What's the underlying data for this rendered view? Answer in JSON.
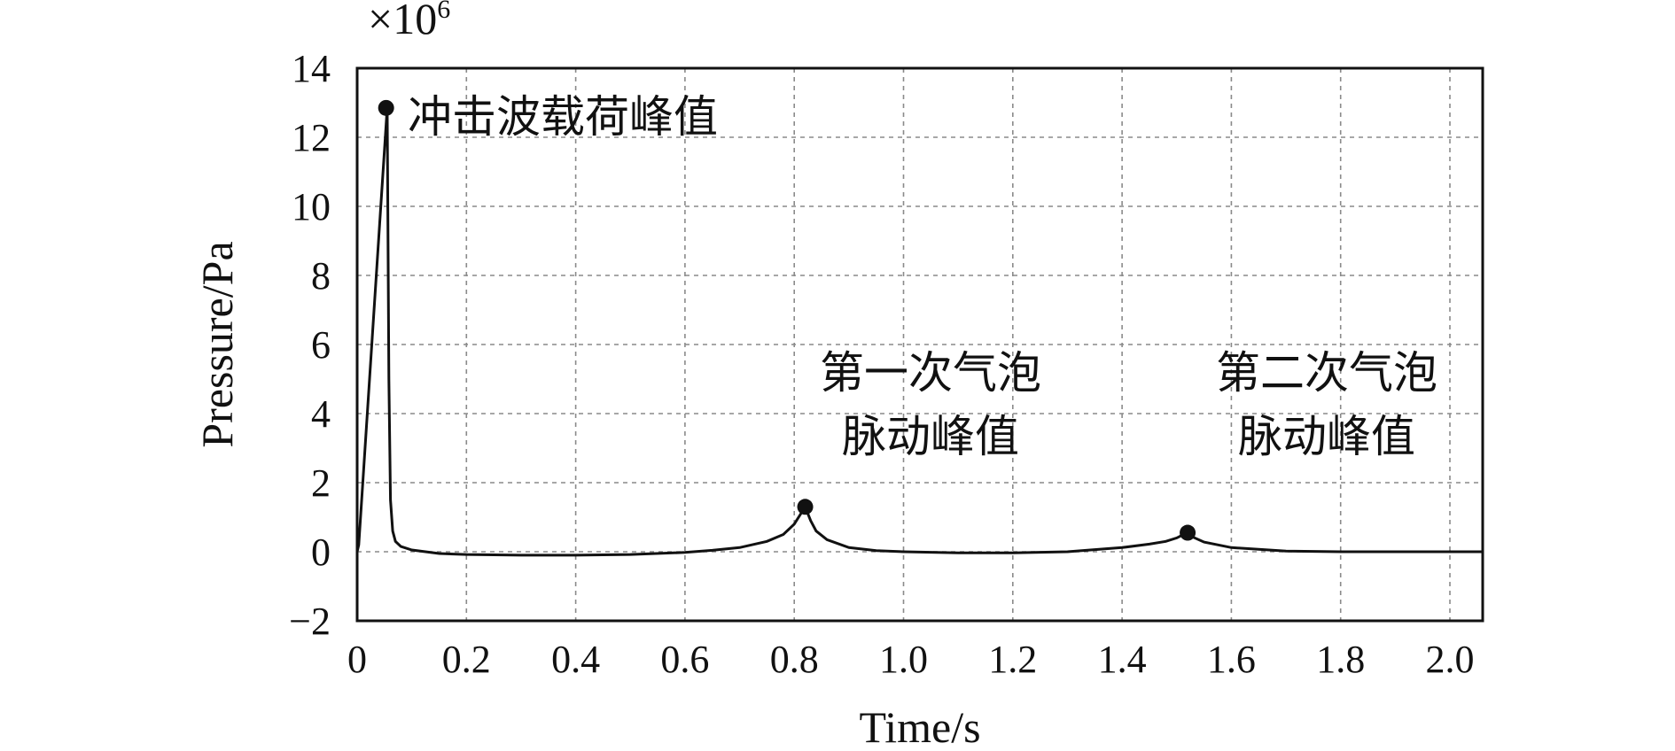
{
  "chart_data": {
    "type": "line",
    "title": "",
    "xlabel": "Time/s",
    "ylabel": "Pressure/Pa",
    "y_multiplier_label": "×10",
    "y_multiplier_exponent": "6",
    "xlim": [
      0,
      2.06
    ],
    "ylim": [
      -2,
      14
    ],
    "x_ticks": [
      0,
      0.2,
      0.4,
      0.6,
      0.8,
      1.0,
      1.2,
      1.4,
      1.6,
      1.8,
      2.0
    ],
    "x_tick_labels": [
      "0",
      "0.2",
      "0.4",
      "0.6",
      "0.8",
      "1.0",
      "1.2",
      "1.4",
      "1.6",
      "1.8",
      "2.0"
    ],
    "y_ticks": [
      -2,
      0,
      2,
      4,
      6,
      8,
      10,
      12,
      14
    ],
    "y_tick_labels": [
      "−2",
      "0",
      "2",
      "4",
      "6",
      "8",
      "10",
      "12",
      "14"
    ],
    "grid": true,
    "series": [
      {
        "x": [
          0,
          0.003,
          0.055,
          0.058,
          0.061,
          0.065,
          0.07,
          0.08,
          0.1,
          0.15,
          0.2,
          0.3,
          0.4,
          0.5,
          0.6,
          0.65,
          0.7,
          0.75,
          0.78,
          0.8,
          0.81,
          0.82,
          0.83,
          0.84,
          0.86,
          0.9,
          0.95,
          1.0,
          1.1,
          1.2,
          1.3,
          1.4,
          1.45,
          1.48,
          1.5,
          1.51,
          1.52,
          1.53,
          1.55,
          1.6,
          1.7,
          1.8,
          1.9,
          2.06
        ],
        "y": [
          0,
          0.2,
          12.85,
          5,
          1.5,
          0.6,
          0.3,
          0.15,
          0.05,
          -0.05,
          -0.08,
          -0.1,
          -0.1,
          -0.08,
          -0.02,
          0.04,
          0.12,
          0.3,
          0.5,
          0.8,
          1.05,
          1.3,
          0.9,
          0.6,
          0.35,
          0.12,
          0.03,
          0.0,
          -0.03,
          -0.03,
          0.0,
          0.12,
          0.22,
          0.3,
          0.4,
          0.48,
          0.52,
          0.42,
          0.28,
          0.12,
          0.02,
          0.0,
          0.0,
          0.0
        ]
      }
    ],
    "annotations": [
      {
        "x": 0.053,
        "y": 12.85,
        "lines": [
          "冲击波载荷峰值"
        ]
      },
      {
        "x": 0.82,
        "y": 1.3,
        "lines": [
          "第一次气泡",
          "脉动峰值"
        ]
      },
      {
        "x": 1.52,
        "y": 0.55,
        "lines": [
          "第二次气泡",
          "脉动峰值"
        ]
      }
    ]
  }
}
